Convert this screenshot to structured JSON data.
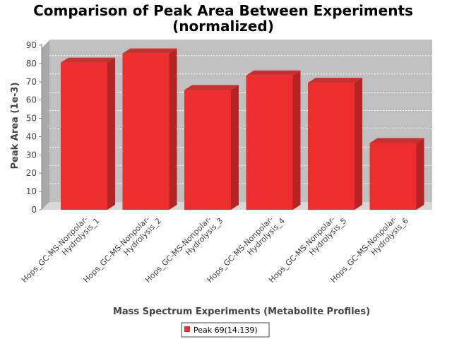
{
  "chart_data": {
    "type": "bar",
    "title_lines": [
      "Comparison of Peak Area Between Experiments",
      "(normalized)"
    ],
    "xlabel": "Mass Spectrum Experiments (Metabolite Profiles)",
    "ylabel": "Peak Area (1e-3)",
    "categories": [
      [
        "Hops_GC-MS-Nonpolar-",
        "Hydrolysis_1"
      ],
      [
        "Hops_GC-MS-Nonpolar-",
        "Hydrolysis_2"
      ],
      [
        "Hops_GC-MS-Nonpolar-",
        "Hydrolysis_3"
      ],
      [
        "Hops_GC-MS-Nonpolar-",
        "Hydrolysis_4"
      ],
      [
        "Hops_GC-MS-Nonpolar-",
        "Hydrolysis_5"
      ],
      [
        "Hops_GC-MS-Nonpolar-",
        "Hydrolysis_6"
      ]
    ],
    "series": [
      {
        "name": "Peak 69(14.139)",
        "values": [
          80.5,
          85.5,
          65.5,
          73.5,
          69.5,
          36.5
        ]
      }
    ],
    "ylim": [
      0,
      90
    ],
    "yticks": [
      0,
      10,
      20,
      30,
      40,
      50,
      60,
      70,
      80,
      90
    ],
    "grid": true,
    "legend_position": "bottom",
    "colors": {
      "bar": "#ee2e2e",
      "plot_bg": "#c0c0c0"
    }
  }
}
